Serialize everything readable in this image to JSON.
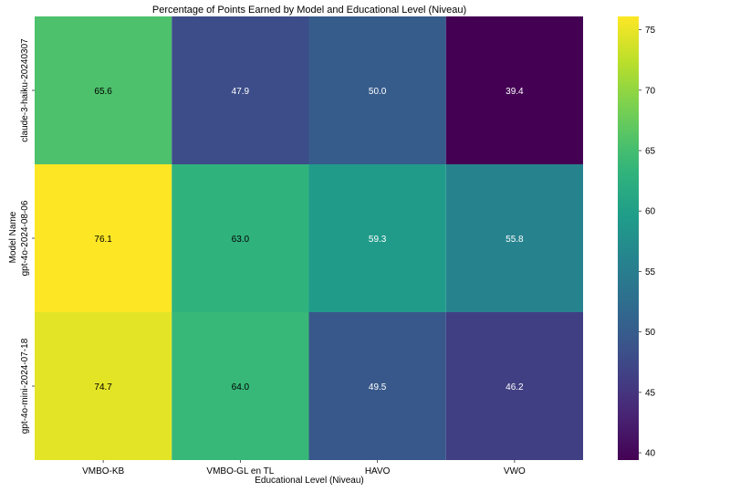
{
  "chart_data": {
    "type": "heatmap",
    "title": "Percentage of Points Earned by Model and Educational Level (Niveau)",
    "xlabel": "Educational Level (Niveau)",
    "ylabel": "Model Name",
    "x_categories": [
      "VMBO-KB",
      "VMBO-GL en TL",
      "HAVO",
      "VWO"
    ],
    "y_categories": [
      "claude-3-haiku-20240307",
      "gpt-4o-2024-08-06",
      "gpt-4o-mini-2024-07-18"
    ],
    "values": [
      [
        65.6,
        47.9,
        50.0,
        39.4
      ],
      [
        76.1,
        63.0,
        59.3,
        55.8
      ],
      [
        74.7,
        64.0,
        49.5,
        46.2
      ]
    ],
    "value_labels": [
      [
        "65.6",
        "47.9",
        "50.0",
        "39.4"
      ],
      [
        "76.1",
        "63.0",
        "59.3",
        "55.8"
      ],
      [
        "74.7",
        "64.0",
        "49.5",
        "46.2"
      ]
    ],
    "colormap": "viridis",
    "colorbar": {
      "vmin": 39.4,
      "vmax": 76.1,
      "ticks": [
        40,
        45,
        50,
        55,
        60,
        65,
        70,
        75
      ],
      "tick_labels": [
        "40",
        "45",
        "50",
        "55",
        "60",
        "65",
        "70",
        "75"
      ]
    }
  }
}
